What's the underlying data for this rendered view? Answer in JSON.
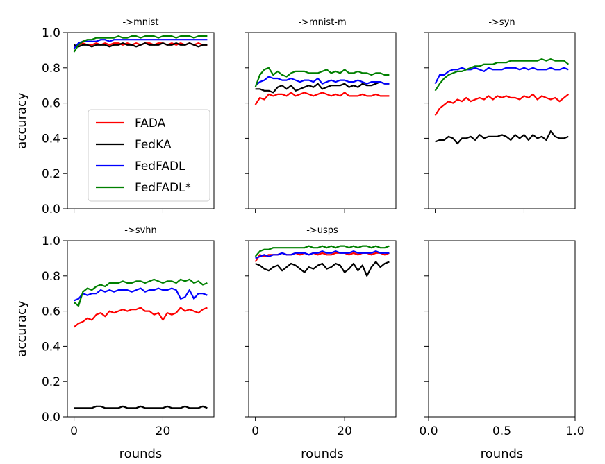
{
  "chart_data": {
    "type": "line",
    "layout": "2x3 grid of subplots, shared y axis",
    "ylabel": "accuracy",
    "xlabel": "rounds",
    "ylim": [
      0.0,
      1.0
    ],
    "yticks": [
      0.0,
      0.2,
      0.4,
      0.6,
      0.8,
      1.0
    ],
    "ytick_labels": [
      "0.0",
      "0.2",
      "0.4",
      "0.6",
      "0.8",
      "1.0"
    ],
    "legend": {
      "placement": "inside first panel, lower-left",
      "entries": [
        {
          "name": "FADA",
          "color": "#ff0000"
        },
        {
          "name": "FedKA",
          "color": "#000000"
        },
        {
          "name": "FedFADL",
          "color": "#0000ff"
        },
        {
          "name": "FedFADL*",
          "color": "#008000"
        }
      ]
    },
    "panels": [
      {
        "title": "->mnist",
        "xlim": [
          -1.5,
          31.5
        ],
        "xticks": [
          0,
          20
        ],
        "xtick_labels": [],
        "show_xlabel": false,
        "show_ylabels": true,
        "series": [
          {
            "name": "FADA",
            "color": "#ff0000",
            "values": [
              0.92,
              0.93,
              0.94,
              0.93,
              0.93,
              0.94,
              0.93,
              0.94,
              0.93,
              0.94,
              0.94,
              0.93,
              0.94,
              0.93,
              0.94,
              0.93,
              0.94,
              0.94,
              0.93,
              0.94,
              0.94,
              0.93,
              0.94,
              0.93,
              0.94,
              0.93,
              0.94,
              0.93,
              0.94,
              0.93,
              0.93
            ]
          },
          {
            "name": "FedKA",
            "color": "#000000",
            "values": [
              0.93,
              0.92,
              0.93,
              0.93,
              0.92,
              0.93,
              0.93,
              0.93,
              0.92,
              0.93,
              0.93,
              0.94,
              0.93,
              0.93,
              0.92,
              0.93,
              0.94,
              0.93,
              0.93,
              0.93,
              0.94,
              0.93,
              0.93,
              0.94,
              0.93,
              0.93,
              0.94,
              0.93,
              0.92,
              0.93,
              0.93
            ]
          },
          {
            "name": "FedFADL",
            "color": "#0000ff",
            "values": [
              0.91,
              0.94,
              0.95,
              0.95,
              0.95,
              0.95,
              0.96,
              0.96,
              0.95,
              0.96,
              0.96,
              0.96,
              0.96,
              0.96,
              0.96,
              0.96,
              0.96,
              0.96,
              0.96,
              0.96,
              0.96,
              0.96,
              0.96,
              0.96,
              0.96,
              0.96,
              0.96,
              0.96,
              0.96,
              0.96,
              0.96
            ]
          },
          {
            "name": "FedFADL*",
            "color": "#008000",
            "values": [
              0.89,
              0.93,
              0.95,
              0.96,
              0.96,
              0.97,
              0.97,
              0.97,
              0.97,
              0.97,
              0.98,
              0.97,
              0.97,
              0.98,
              0.98,
              0.97,
              0.98,
              0.98,
              0.98,
              0.97,
              0.98,
              0.98,
              0.98,
              0.97,
              0.98,
              0.98,
              0.98,
              0.97,
              0.98,
              0.98,
              0.98
            ]
          }
        ]
      },
      {
        "title": "->mnist-m",
        "xlim": [
          -1.5,
          31.5
        ],
        "xticks": [
          0,
          20
        ],
        "xtick_labels": [],
        "show_xlabel": false,
        "show_ylabels": false,
        "series": [
          {
            "name": "FADA",
            "color": "#ff0000",
            "values": [
              0.59,
              0.63,
              0.62,
              0.65,
              0.64,
              0.65,
              0.65,
              0.64,
              0.66,
              0.64,
              0.65,
              0.66,
              0.65,
              0.64,
              0.65,
              0.66,
              0.65,
              0.64,
              0.65,
              0.64,
              0.66,
              0.64,
              0.64,
              0.64,
              0.65,
              0.64,
              0.64,
              0.65,
              0.64,
              0.64,
              0.64
            ]
          },
          {
            "name": "FedKA",
            "color": "#000000",
            "values": [
              0.68,
              0.68,
              0.67,
              0.67,
              0.66,
              0.69,
              0.7,
              0.68,
              0.7,
              0.67,
              0.68,
              0.69,
              0.7,
              0.69,
              0.71,
              0.68,
              0.69,
              0.7,
              0.7,
              0.7,
              0.71,
              0.69,
              0.7,
              0.69,
              0.71,
              0.7,
              0.7,
              0.71,
              0.72,
              0.71,
              0.71
            ]
          },
          {
            "name": "FedFADL",
            "color": "#0000ff",
            "values": [
              0.7,
              0.72,
              0.73,
              0.75,
              0.74,
              0.74,
              0.73,
              0.73,
              0.74,
              0.73,
              0.72,
              0.73,
              0.73,
              0.72,
              0.74,
              0.71,
              0.72,
              0.73,
              0.72,
              0.73,
              0.73,
              0.72,
              0.72,
              0.73,
              0.72,
              0.71,
              0.72,
              0.72,
              0.72,
              0.71,
              0.71
            ]
          },
          {
            "name": "FedFADL*",
            "color": "#008000",
            "values": [
              0.69,
              0.76,
              0.79,
              0.8,
              0.76,
              0.78,
              0.76,
              0.75,
              0.77,
              0.78,
              0.78,
              0.78,
              0.77,
              0.77,
              0.77,
              0.78,
              0.79,
              0.77,
              0.78,
              0.77,
              0.79,
              0.77,
              0.77,
              0.78,
              0.77,
              0.77,
              0.76,
              0.77,
              0.77,
              0.76,
              0.76
            ]
          }
        ]
      },
      {
        "title": "->syn",
        "xlim": [
          -1.5,
          31.5
        ],
        "xticks": [
          0,
          20
        ],
        "xtick_labels": [],
        "show_xlabel": false,
        "show_ylabels": false,
        "series": [
          {
            "name": "FADA",
            "color": "#ff0000",
            "values": [
              0.53,
              0.57,
              0.59,
              0.61,
              0.6,
              0.62,
              0.61,
              0.63,
              0.61,
              0.62,
              0.63,
              0.62,
              0.64,
              0.62,
              0.64,
              0.63,
              0.64,
              0.63,
              0.63,
              0.62,
              0.64,
              0.63,
              0.65,
              0.62,
              0.64,
              0.63,
              0.62,
              0.63,
              0.61,
              0.63,
              0.65
            ]
          },
          {
            "name": "FedKA",
            "color": "#000000",
            "values": [
              0.38,
              0.39,
              0.39,
              0.41,
              0.4,
              0.37,
              0.4,
              0.4,
              0.41,
              0.39,
              0.42,
              0.4,
              0.41,
              0.41,
              0.41,
              0.42,
              0.41,
              0.39,
              0.42,
              0.4,
              0.42,
              0.39,
              0.42,
              0.4,
              0.41,
              0.39,
              0.44,
              0.41,
              0.4,
              0.4,
              0.41
            ]
          },
          {
            "name": "FedFADL",
            "color": "#0000ff",
            "values": [
              0.71,
              0.76,
              0.76,
              0.78,
              0.79,
              0.79,
              0.8,
              0.79,
              0.79,
              0.8,
              0.79,
              0.78,
              0.8,
              0.79,
              0.79,
              0.79,
              0.8,
              0.8,
              0.8,
              0.79,
              0.8,
              0.79,
              0.8,
              0.79,
              0.79,
              0.79,
              0.8,
              0.79,
              0.79,
              0.8,
              0.79
            ]
          },
          {
            "name": "FedFADL*",
            "color": "#008000",
            "values": [
              0.67,
              0.71,
              0.74,
              0.76,
              0.77,
              0.78,
              0.78,
              0.79,
              0.8,
              0.81,
              0.81,
              0.82,
              0.82,
              0.82,
              0.83,
              0.83,
              0.83,
              0.84,
              0.84,
              0.84,
              0.84,
              0.84,
              0.84,
              0.84,
              0.85,
              0.84,
              0.85,
              0.84,
              0.84,
              0.84,
              0.82
            ]
          }
        ]
      },
      {
        "title": "->svhn",
        "xlim": [
          -1.5,
          31.5
        ],
        "xticks": [
          0,
          20
        ],
        "xtick_labels": [
          "0",
          "20"
        ],
        "show_xlabel": true,
        "show_ylabels": true,
        "series": [
          {
            "name": "FADA",
            "color": "#ff0000",
            "values": [
              0.51,
              0.53,
              0.54,
              0.56,
              0.55,
              0.58,
              0.59,
              0.57,
              0.6,
              0.59,
              0.6,
              0.61,
              0.6,
              0.61,
              0.61,
              0.62,
              0.6,
              0.6,
              0.58,
              0.59,
              0.55,
              0.59,
              0.58,
              0.59,
              0.62,
              0.6,
              0.61,
              0.6,
              0.59,
              0.61,
              0.62
            ]
          },
          {
            "name": "FedKA",
            "color": "#000000",
            "values": [
              0.05,
              0.05,
              0.05,
              0.05,
              0.05,
              0.06,
              0.06,
              0.05,
              0.05,
              0.05,
              0.05,
              0.06,
              0.05,
              0.05,
              0.05,
              0.06,
              0.05,
              0.05,
              0.05,
              0.05,
              0.05,
              0.06,
              0.05,
              0.05,
              0.05,
              0.06,
              0.05,
              0.05,
              0.05,
              0.06,
              0.05
            ]
          },
          {
            "name": "FedFADL",
            "color": "#0000ff",
            "values": [
              0.66,
              0.67,
              0.7,
              0.69,
              0.7,
              0.7,
              0.72,
              0.71,
              0.72,
              0.71,
              0.72,
              0.72,
              0.72,
              0.71,
              0.72,
              0.73,
              0.71,
              0.72,
              0.72,
              0.73,
              0.72,
              0.72,
              0.73,
              0.72,
              0.67,
              0.68,
              0.72,
              0.67,
              0.7,
              0.7,
              0.69
            ]
          },
          {
            "name": "FedFADL*",
            "color": "#008000",
            "values": [
              0.65,
              0.63,
              0.71,
              0.73,
              0.72,
              0.74,
              0.75,
              0.74,
              0.76,
              0.76,
              0.76,
              0.77,
              0.76,
              0.76,
              0.77,
              0.77,
              0.76,
              0.77,
              0.78,
              0.77,
              0.76,
              0.77,
              0.77,
              0.76,
              0.78,
              0.77,
              0.78,
              0.76,
              0.77,
              0.75,
              0.76
            ]
          }
        ]
      },
      {
        "title": "->usps",
        "xlim": [
          -1.5,
          31.5
        ],
        "xticks": [
          0,
          20
        ],
        "xtick_labels": [
          "0",
          "20"
        ],
        "show_xlabel": true,
        "show_ylabels": false,
        "series": [
          {
            "name": "FADA",
            "color": "#ff0000",
            "values": [
              0.88,
              0.92,
              0.91,
              0.92,
              0.92,
              0.92,
              0.93,
              0.92,
              0.92,
              0.93,
              0.92,
              0.93,
              0.92,
              0.93,
              0.92,
              0.93,
              0.92,
              0.92,
              0.93,
              0.93,
              0.93,
              0.92,
              0.93,
              0.92,
              0.93,
              0.93,
              0.92,
              0.93,
              0.93,
              0.92,
              0.93
            ]
          },
          {
            "name": "FedKA",
            "color": "#000000",
            "values": [
              0.87,
              0.86,
              0.84,
              0.83,
              0.85,
              0.86,
              0.83,
              0.85,
              0.87,
              0.86,
              0.84,
              0.82,
              0.85,
              0.84,
              0.86,
              0.87,
              0.84,
              0.85,
              0.87,
              0.86,
              0.82,
              0.84,
              0.87,
              0.83,
              0.86,
              0.8,
              0.85,
              0.88,
              0.85,
              0.87,
              0.88
            ]
          },
          {
            "name": "FedFADL",
            "color": "#0000ff",
            "values": [
              0.9,
              0.91,
              0.92,
              0.91,
              0.92,
              0.92,
              0.93,
              0.92,
              0.92,
              0.93,
              0.93,
              0.93,
              0.92,
              0.93,
              0.93,
              0.94,
              0.93,
              0.93,
              0.94,
              0.93,
              0.93,
              0.93,
              0.94,
              0.93,
              0.93,
              0.93,
              0.93,
              0.94,
              0.93,
              0.93,
              0.93
            ]
          },
          {
            "name": "FedFADL*",
            "color": "#008000",
            "values": [
              0.91,
              0.94,
              0.95,
              0.95,
              0.96,
              0.96,
              0.96,
              0.96,
              0.96,
              0.96,
              0.96,
              0.96,
              0.97,
              0.96,
              0.96,
              0.97,
              0.96,
              0.97,
              0.96,
              0.97,
              0.97,
              0.96,
              0.97,
              0.96,
              0.97,
              0.97,
              0.96,
              0.97,
              0.96,
              0.96,
              0.97
            ]
          }
        ]
      },
      {
        "title": "",
        "xlim": [
          0.0,
          1.0
        ],
        "xticks": [
          0.0,
          0.5,
          1.0
        ],
        "xtick_labels": [
          "0.0",
          "0.5",
          "1.0"
        ],
        "show_xlabel": true,
        "show_ylabels": false,
        "series": []
      }
    ]
  }
}
